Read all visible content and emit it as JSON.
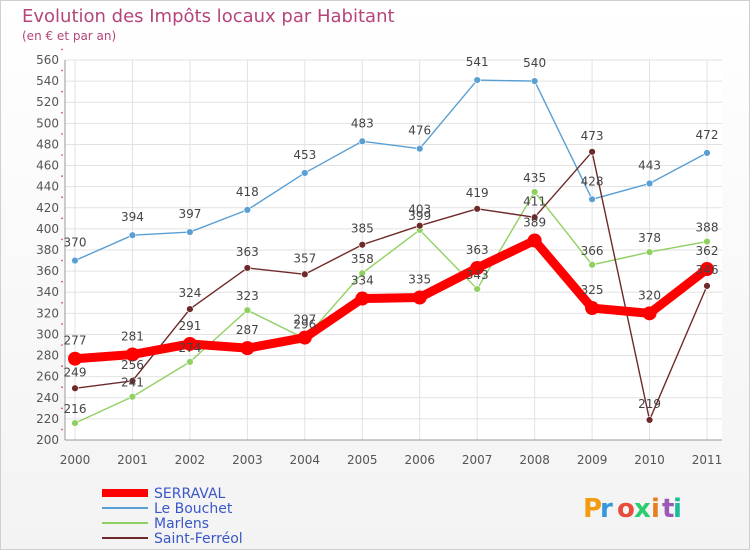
{
  "chart_data": {
    "type": "line",
    "title": "Evolution des Impôts locaux par Habitant",
    "subtitle": "(en € et par an)",
    "categories": [
      "2000",
      "2001",
      "2002",
      "2003",
      "2004",
      "2005",
      "2006",
      "2007",
      "2008",
      "2009",
      "2010",
      "2011"
    ],
    "ylim": [
      200,
      560
    ],
    "ytick_step": 20,
    "series": [
      {
        "name": "Le Bouchet",
        "color": "#5a9fd4",
        "values": [
          370,
          394,
          397,
          418,
          453,
          483,
          476,
          541,
          540,
          428,
          443,
          472
        ]
      },
      {
        "name": "Marlens",
        "color": "#90d060",
        "values": [
          216,
          241,
          274,
          323,
          296,
          358,
          399,
          343,
          435,
          366,
          378,
          388
        ]
      },
      {
        "name": "Saint-Ferréol",
        "color": "#6e2a2a",
        "values": [
          249,
          256,
          324,
          363,
          357,
          385,
          403,
          419,
          411,
          473,
          219,
          346
        ]
      },
      {
        "name": "SERRAVAL",
        "color": "#ff0000",
        "values": [
          277,
          281,
          291,
          287,
          297,
          334,
          335,
          363,
          389,
          325,
          320,
          362
        ]
      }
    ],
    "legend": [
      "SERRAVAL",
      "Le Bouchet",
      "Marlens",
      "Saint-Ferréol"
    ]
  },
  "logo": {
    "letters": [
      "P",
      "r",
      "o",
      "x",
      "i",
      "t",
      "i"
    ],
    "colors": [
      "#f39c12",
      "#3498db",
      "#e74c3c",
      "#2ecc71",
      "#e67e22",
      "#9b59b6",
      "#1abc9c"
    ]
  }
}
